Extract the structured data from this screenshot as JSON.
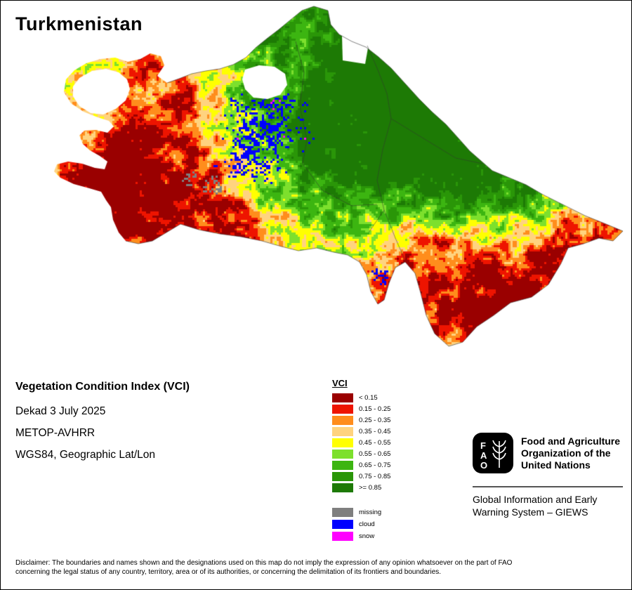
{
  "title": "Turkmenistan",
  "info": {
    "heading": "Vegetation Condition Index (VCI)",
    "lines": [
      "Dekad 3 July 2025",
      "METOP-AVHRR",
      "WGS84, Geographic Lat/Lon"
    ]
  },
  "legend": {
    "title": "VCI",
    "classes": [
      {
        "label": "< 0.15",
        "color": "#9a0000"
      },
      {
        "label": "0.15 - 0.25",
        "color": "#ee1400"
      },
      {
        "label": "0.25 - 0.35",
        "color": "#ff8d1c"
      },
      {
        "label": "0.35 - 0.45",
        "color": "#ffd37f"
      },
      {
        "label": "0.45 - 0.55",
        "color": "#ffff00"
      },
      {
        "label": "0.55 - 0.65",
        "color": "#7de02d"
      },
      {
        "label": "0.65 - 0.75",
        "color": "#3cb511"
      },
      {
        "label": "0.75 - 0.85",
        "color": "#2a9608"
      },
      {
        "label": ">= 0.85",
        "color": "#1d7a05"
      }
    ],
    "extra": [
      {
        "label": "missing",
        "color": "#7f7f7f"
      },
      {
        "label": "cloud",
        "color": "#0000ff"
      },
      {
        "label": "snow",
        "color": "#ff00ff"
      }
    ]
  },
  "org": {
    "logo_letters": [
      "F",
      "A",
      "O"
    ],
    "fao_lines": [
      "Food and Agriculture",
      "Organization of the",
      "United Nations"
    ],
    "giews_lines": [
      "Global Information and Early",
      "Warning System – GIEWS"
    ]
  },
  "disclaimer_lines": [
    "Disclaimer: The boundaries and names shown and the designations used on this map do not imply the expression of any opinion whatsoever on the part of FAO",
    "concerning the legal status of any country, territory, area or of its authorities, or concerning the delimitation of its frontiers and boundaries."
  ]
}
